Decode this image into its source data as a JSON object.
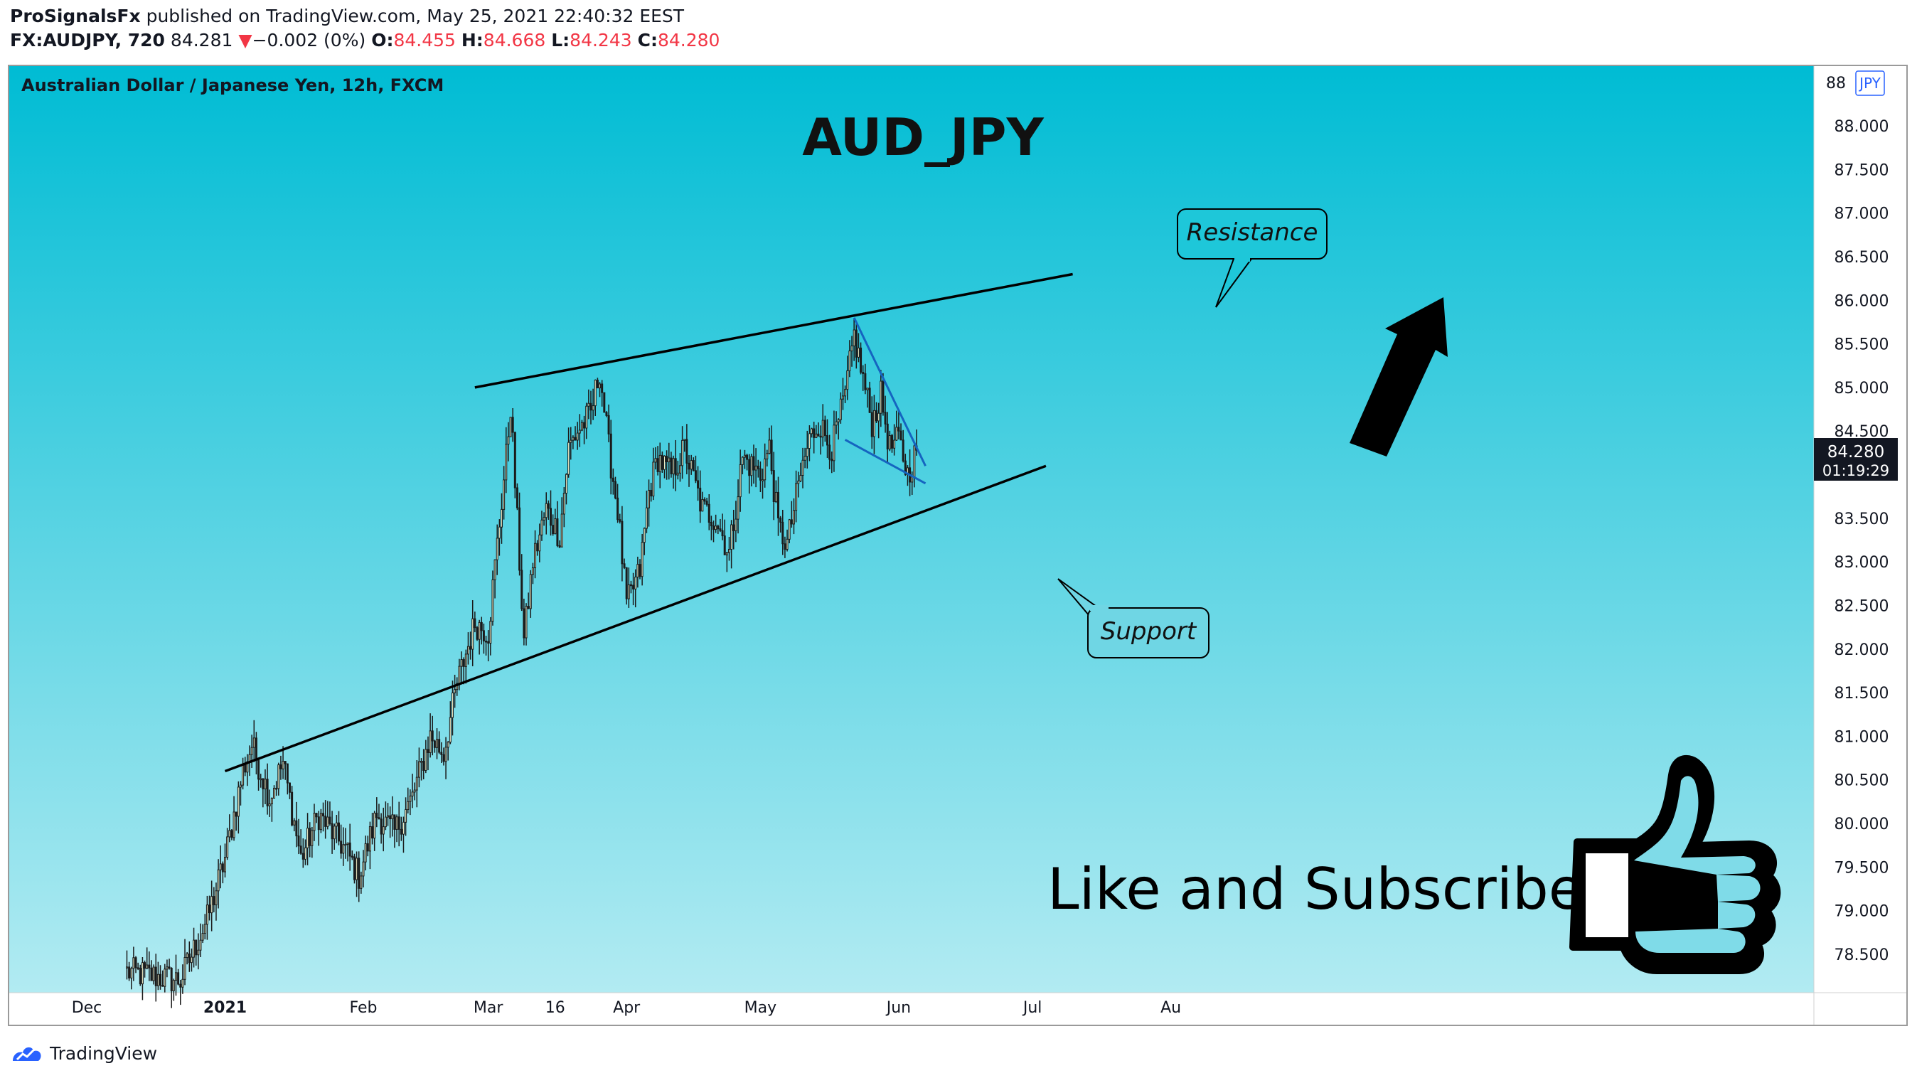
{
  "header": {
    "author": "ProSignalsFx",
    "published_text": "published on TradingView.com, May 25, 2021 22:40:32 EEST",
    "symbol": "FX:AUDJPY, 720",
    "last": "84.281",
    "change_arrow": "▼",
    "change": "−0.002 (0%)",
    "open_label": "O:",
    "open": "84.455",
    "high_label": "H:",
    "high": "84.668",
    "low_label": "L:",
    "low": "84.243",
    "close_label": "C:",
    "close": "84.280"
  },
  "chart_data": {
    "type": "candlestick",
    "subtitle": "Australian Dollar / Japanese Yen, 12h, FXCM",
    "title": "AUD_JPY",
    "currency_badge": "JPY",
    "price_label": "84.280",
    "countdown_label": "01:19:29",
    "ylim": [
      78.2,
      88.5
    ],
    "y_ticks": [
      "88.000",
      "87.500",
      "87.000",
      "86.500",
      "86.000",
      "85.500",
      "85.000",
      "84.500",
      "83.500",
      "83.000",
      "82.500",
      "82.000",
      "81.500",
      "81.000",
      "80.500",
      "80.000",
      "79.500",
      "79.000",
      "78.500"
    ],
    "y_top_partial": "88",
    "x_ticks": [
      {
        "label": "Dec",
        "date": "2020-12-01"
      },
      {
        "label": "2021",
        "date": "2021-01-01",
        "bold": true
      },
      {
        "label": "Feb",
        "date": "2021-02-01"
      },
      {
        "label": "Mar",
        "date": "2021-03-01"
      },
      {
        "label": "16",
        "date": "2021-03-16"
      },
      {
        "label": "Apr",
        "date": "2021-04-01"
      },
      {
        "label": "May",
        "date": "2021-05-01"
      },
      {
        "label": "Jun",
        "date": "2021-06-01"
      },
      {
        "label": "Jul",
        "date": "2021-07-01"
      },
      {
        "label": "Au",
        "date": "2021-08-01"
      }
    ],
    "key_closes": [
      {
        "date": "2020-12-10",
        "close": 78.3
      },
      {
        "date": "2020-12-22",
        "close": 78.2
      },
      {
        "date": "2020-12-28",
        "close": 78.9
      },
      {
        "date": "2021-01-01",
        "close": 79.6
      },
      {
        "date": "2021-01-05",
        "close": 80.6
      },
      {
        "date": "2021-01-07",
        "close": 80.9
      },
      {
        "date": "2021-01-11",
        "close": 80.3
      },
      {
        "date": "2021-01-14",
        "close": 80.7
      },
      {
        "date": "2021-01-18",
        "close": 79.6
      },
      {
        "date": "2021-01-22",
        "close": 80.1
      },
      {
        "date": "2021-01-28",
        "close": 79.7
      },
      {
        "date": "2021-01-31",
        "close": 79.4
      },
      {
        "date": "2021-02-04",
        "close": 80.1
      },
      {
        "date": "2021-02-08",
        "close": 79.9
      },
      {
        "date": "2021-02-12",
        "close": 80.3
      },
      {
        "date": "2021-02-16",
        "close": 81.0
      },
      {
        "date": "2021-02-19",
        "close": 80.8
      },
      {
        "date": "2021-02-22",
        "close": 81.6
      },
      {
        "date": "2021-02-26",
        "close": 82.3
      },
      {
        "date": "2021-03-01",
        "close": 82.2
      },
      {
        "date": "2021-03-03",
        "close": 83.2
      },
      {
        "date": "2021-03-05",
        "close": 84.2
      },
      {
        "date": "2021-03-06",
        "close": 84.8
      },
      {
        "date": "2021-03-09",
        "close": 82.1
      },
      {
        "date": "2021-03-11",
        "close": 83.0
      },
      {
        "date": "2021-03-14",
        "close": 83.6
      },
      {
        "date": "2021-03-17",
        "close": 83.3
      },
      {
        "date": "2021-03-19",
        "close": 84.3
      },
      {
        "date": "2021-03-21",
        "close": 84.5
      },
      {
        "date": "2021-03-24",
        "close": 84.7
      },
      {
        "date": "2021-03-26",
        "close": 85.2
      },
      {
        "date": "2021-03-28",
        "close": 84.3
      },
      {
        "date": "2021-03-30",
        "close": 83.6
      },
      {
        "date": "2021-04-01",
        "close": 82.5
      },
      {
        "date": "2021-04-04",
        "close": 82.9
      },
      {
        "date": "2021-04-06",
        "close": 83.8
      },
      {
        "date": "2021-04-08",
        "close": 84.2
      },
      {
        "date": "2021-04-11",
        "close": 84.0
      },
      {
        "date": "2021-04-14",
        "close": 84.3
      },
      {
        "date": "2021-04-18",
        "close": 83.6
      },
      {
        "date": "2021-04-21",
        "close": 83.5
      },
      {
        "date": "2021-04-24",
        "close": 83.1
      },
      {
        "date": "2021-04-27",
        "close": 84.2
      },
      {
        "date": "2021-05-01",
        "close": 84.0
      },
      {
        "date": "2021-05-03",
        "close": 84.3
      },
      {
        "date": "2021-05-05",
        "close": 83.4
      },
      {
        "date": "2021-05-07",
        "close": 83.2
      },
      {
        "date": "2021-05-10",
        "close": 84.0
      },
      {
        "date": "2021-05-12",
        "close": 84.4
      },
      {
        "date": "2021-05-14",
        "close": 84.6
      },
      {
        "date": "2021-05-17",
        "close": 84.3
      },
      {
        "date": "2021-05-20",
        "close": 84.9
      },
      {
        "date": "2021-05-22",
        "close": 85.6
      },
      {
        "date": "2021-05-24",
        "close": 85.1
      },
      {
        "date": "2021-05-26",
        "close": 84.6
      },
      {
        "date": "2021-05-28",
        "close": 84.9
      },
      {
        "date": "2021-05-30",
        "close": 84.3
      },
      {
        "date": "2021-06-01",
        "close": 84.4
      },
      {
        "date": "2021-06-03",
        "close": 84.0
      },
      {
        "date": "2021-06-05",
        "close": 84.28
      }
    ],
    "annotations": [
      {
        "text": "Resistance"
      },
      {
        "text": "Support"
      }
    ],
    "trend_lines": [
      {
        "name": "resistance",
        "from": {
          "date": "2021-02-26",
          "price": 85.0
        },
        "to": {
          "date": "2021-07-10",
          "price": 86.3
        }
      },
      {
        "name": "support",
        "from": {
          "date": "2021-01-01",
          "price": 80.6
        },
        "to": {
          "date": "2021-07-04",
          "price": 84.1
        }
      }
    ],
    "wedge_lines": [
      {
        "from": {
          "date": "2021-05-22",
          "price": 85.8
        },
        "to": {
          "date": "2021-06-07",
          "price": 84.1
        }
      },
      {
        "from": {
          "date": "2021-05-20",
          "price": 84.4
        },
        "to": {
          "date": "2021-06-07",
          "price": 83.9
        }
      }
    ],
    "callout_text": "Like and Subscribe",
    "colors": {
      "bg_top": "#00bcd4",
      "bg_bottom": "#b2ebf2",
      "candle_up": "#f5f0c8",
      "candle_down": "#1a1a1a",
      "wedge": "#1565c0",
      "trend": "#000000"
    }
  },
  "footer": {
    "brand": "TradingView"
  }
}
